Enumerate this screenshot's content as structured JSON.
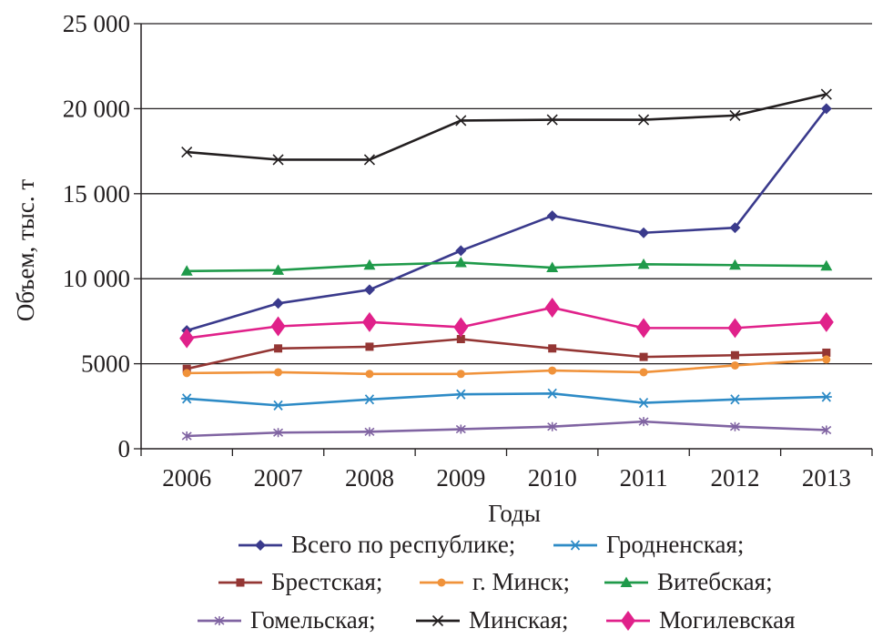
{
  "chart_data": {
    "type": "line",
    "title": "",
    "xlabel": "Годы",
    "ylabel": "Объем, тыс. т",
    "categories": [
      "2006",
      "2007",
      "2008",
      "2009",
      "2010",
      "2011",
      "2012",
      "2013"
    ],
    "ylim": [
      0,
      25000
    ],
    "yticks": [
      {
        "value": 0,
        "label": "0"
      },
      {
        "value": 5000,
        "label": "5000"
      },
      {
        "value": 10000,
        "label": "10 000"
      },
      {
        "value": 15000,
        "label": "15 000"
      },
      {
        "value": 20000,
        "label": "20 000"
      },
      {
        "value": 25000,
        "label": "25 000"
      }
    ],
    "grid": "horizontal",
    "legend_position": "bottom",
    "series": [
      {
        "name": "Всего по республике;",
        "legend": "Всего по республике;",
        "color": "#3a3a8c",
        "marker": "diamond",
        "values": [
          6950,
          8550,
          9350,
          11650,
          13700,
          12700,
          13000,
          20000
        ]
      },
      {
        "name": "Гродненская;",
        "legend": "Гродненская;",
        "color": "#2e8bc6",
        "marker": "asterisk",
        "values": [
          2950,
          2550,
          2900,
          3200,
          3250,
          2700,
          2900,
          3050
        ]
      },
      {
        "name": "Брестская;",
        "legend": "Брестская;",
        "color": "#943634",
        "marker": "square",
        "values": [
          4700,
          5900,
          6000,
          6450,
          5900,
          5400,
          5500,
          5650
        ]
      },
      {
        "name": "г. Минск;",
        "legend": "г. Минск;",
        "color": "#f0923a",
        "marker": "circle",
        "values": [
          4450,
          4500,
          4400,
          4400,
          4600,
          4500,
          4900,
          5250
        ]
      },
      {
        "name": "Витебская;",
        "legend": "Витебская;",
        "color": "#1f9a4a",
        "marker": "triangle",
        "values": [
          10450,
          10500,
          10800,
          10950,
          10650,
          10850,
          10800,
          10750
        ]
      },
      {
        "name": "Гомельская;",
        "legend": "Гомельская;",
        "color": "#8064a2",
        "marker": "star",
        "values": [
          750,
          950,
          1000,
          1150,
          1300,
          1600,
          1300,
          1100
        ]
      },
      {
        "name": "Минская;",
        "legend": "Минская;",
        "color": "#231f20",
        "marker": "x",
        "values": [
          17450,
          17000,
          17000,
          19300,
          19350,
          19350,
          19600,
          20850
        ]
      },
      {
        "name": "Могилевская",
        "legend": "Могилевская",
        "color": "#e0218a",
        "marker": "bigdiamond",
        "values": [
          6500,
          7200,
          7450,
          7150,
          8300,
          7100,
          7100,
          7450
        ]
      }
    ]
  }
}
